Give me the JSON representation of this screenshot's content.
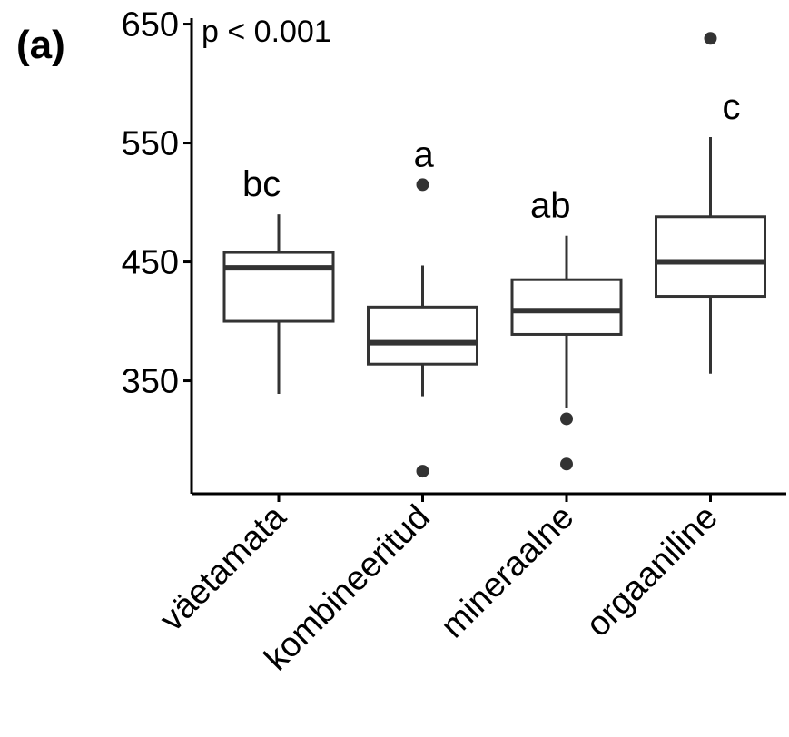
{
  "chart_data": {
    "type": "boxplot",
    "panel_label": "(a)",
    "annotation": "p < 0.001",
    "xlabel": "",
    "ylabel": "",
    "ylim": [
      255,
      655
    ],
    "yticks": [
      350,
      450,
      550,
      650
    ],
    "grid": false,
    "legend": "none",
    "colors": {
      "box_stroke": "#333333",
      "median": "#333333",
      "outlier": "#333333",
      "axis": "#000000"
    },
    "categories": [
      "väetamata",
      "kombineeritud",
      "mineraalne",
      "orgaaniline"
    ],
    "groups": [
      {
        "category": "väetamata",
        "whisker_low": 339,
        "q1": 400,
        "median": 445,
        "q3": 458,
        "whisker_high": 490,
        "outliers": [],
        "letter": "bc"
      },
      {
        "category": "kombineeritud",
        "whisker_low": 337,
        "q1": 364,
        "median": 382,
        "q3": 412,
        "whisker_high": 447,
        "outliers": [
          515,
          274
        ],
        "letter": "a"
      },
      {
        "category": "mineraalne",
        "whisker_low": 327,
        "q1": 389,
        "median": 409,
        "q3": 435,
        "whisker_high": 472,
        "outliers": [
          318,
          280
        ],
        "letter": "ab"
      },
      {
        "category": "orgaaniline",
        "whisker_low": 356,
        "q1": 421,
        "median": 450,
        "q3": 488,
        "whisker_high": 555,
        "outliers": [
          638
        ],
        "letter": "c"
      }
    ]
  }
}
